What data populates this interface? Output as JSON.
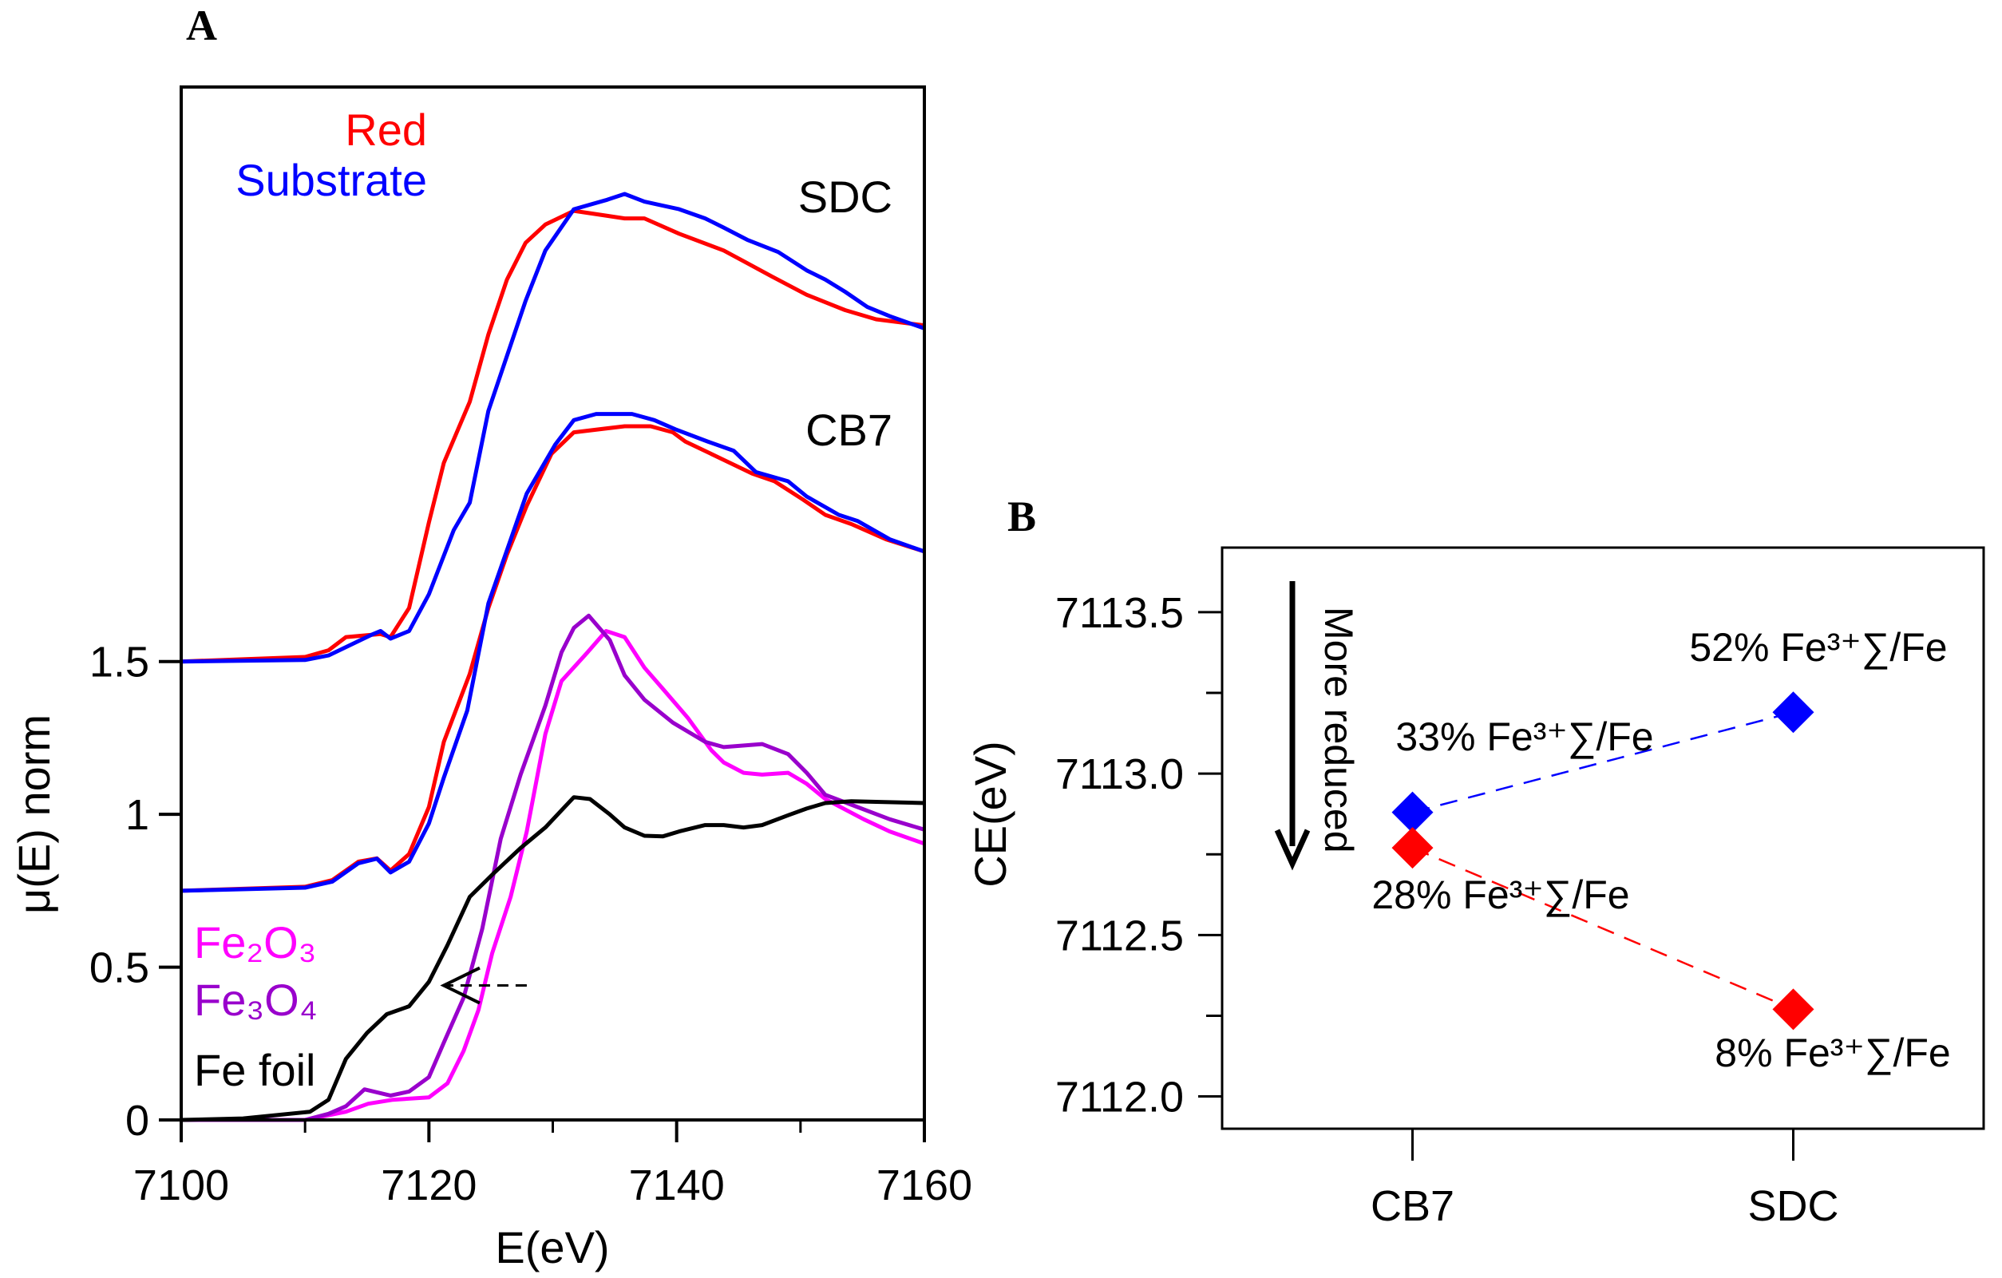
{
  "chart_data": [
    {
      "panel_label": "A",
      "type": "line",
      "xlabel": "E(eV)",
      "ylabel": "μ(E) norm",
      "xlim": [
        7100,
        7160
      ],
      "ylim": [
        0,
        3.38
      ],
      "xticks": [
        "7100",
        "7120",
        "7140",
        "7160"
      ],
      "yticks": [
        "0",
        "0.5",
        "1",
        "1.5"
      ],
      "grid": false,
      "legend": {
        "red_label": "Red",
        "substrate_label": "Substrate",
        "fe2o3_label": "Fe₂O₃",
        "fe3o4_label": "Fe₃O₄",
        "fefoil_label": "Fe foil"
      },
      "group_labels": {
        "sdc": "SDC",
        "cb7": "CB7"
      },
      "colors": {
        "red": "#ff0000",
        "substrate": "#0000ff",
        "fe2o3": "#ff00ff",
        "fe3o4": "#9900cc",
        "fefoil": "#000000"
      },
      "series": [
        {
          "name": "Red",
          "group": "SDC",
          "color": "#ff0000",
          "x": [
            7100,
            7110,
            7111.9,
            7113.3,
            7116.1,
            7116.9,
            7118.4,
            7120,
            7121.2,
            7123.3,
            7124.8,
            7126.3,
            7127.8,
            7129.4,
            7131.7,
            7135.8,
            7137.4,
            7140.2,
            7143.8,
            7145.4,
            7147.7,
            7150.5,
            7153.6,
            7156.1,
            7160
          ],
          "y": [
            1.5,
            1.515,
            1.537,
            1.58,
            1.59,
            1.58,
            1.675,
            1.955,
            2.15,
            2.35,
            2.57,
            2.75,
            2.87,
            2.93,
            2.975,
            2.95,
            2.95,
            2.9,
            2.845,
            2.81,
            2.76,
            2.7,
            2.65,
            2.62,
            2.6
          ]
        },
        {
          "name": "Substrate",
          "group": "SDC",
          "color": "#0000ff",
          "x": [
            7100,
            7110,
            7111.9,
            7115.5,
            7116.1,
            7116.9,
            7118.4,
            7120,
            7122,
            7123.3,
            7124.8,
            7127.8,
            7129.4,
            7131.7,
            7134.3,
            7135.8,
            7137.4,
            7140.2,
            7142.3,
            7143.8,
            7145.7,
            7148.2,
            7150.5,
            7152,
            7153.6,
            7155.4,
            7157.2,
            7160
          ],
          "y": [
            1.5,
            1.505,
            1.52,
            1.59,
            1.6,
            1.575,
            1.6,
            1.72,
            1.93,
            2.02,
            2.32,
            2.68,
            2.845,
            2.98,
            3.01,
            3.03,
            3.005,
            2.98,
            2.95,
            2.92,
            2.88,
            2.84,
            2.78,
            2.75,
            2.71,
            2.66,
            2.63,
            2.59
          ]
        },
        {
          "name": "Red",
          "group": "CB7",
          "color": "#ff0000",
          "x": [
            7100,
            7110,
            7112.2,
            7114.3,
            7115.8,
            7116.9,
            7118.4,
            7120,
            7121.2,
            7123.3,
            7124.8,
            7126.3,
            7127.9,
            7129.9,
            7131.7,
            7135.8,
            7137.9,
            7139.7,
            7140.7,
            7143.8,
            7146.1,
            7147.9,
            7150.2,
            7152,
            7154.1,
            7156.9,
            7160
          ],
          "y": [
            0.75,
            0.763,
            0.785,
            0.845,
            0.856,
            0.816,
            0.87,
            1.024,
            1.237,
            1.46,
            1.675,
            1.85,
            2.01,
            2.18,
            2.25,
            2.27,
            2.27,
            2.25,
            2.22,
            2.16,
            2.115,
            2.09,
            2.03,
            1.98,
            1.95,
            1.9,
            1.86
          ]
        },
        {
          "name": "Substrate",
          "group": "CB7",
          "color": "#0000ff",
          "x": [
            7100,
            7110,
            7112.2,
            7114.3,
            7115.8,
            7116.9,
            7118.4,
            7120,
            7121.2,
            7123.1,
            7124.8,
            7127.9,
            7130.2,
            7131.7,
            7133.5,
            7136.4,
            7138.2,
            7139.9,
            7142.5,
            7144.6,
            7146.4,
            7149,
            7150.5,
            7153.1,
            7154.6,
            7157.2,
            7160
          ],
          "y": [
            0.75,
            0.76,
            0.78,
            0.84,
            0.855,
            0.81,
            0.845,
            0.97,
            1.12,
            1.34,
            1.69,
            2.05,
            2.21,
            2.29,
            2.31,
            2.31,
            2.29,
            2.26,
            2.22,
            2.19,
            2.12,
            2.09,
            2.04,
            1.98,
            1.96,
            1.9,
            1.86
          ]
        },
        {
          "name": "Fe₂O₃",
          "color": "#ff00ff",
          "x": [
            7100,
            7110,
            7113.3,
            7115.1,
            7117.1,
            7120,
            7121.5,
            7122.8,
            7124.0,
            7125.1,
            7126.6,
            7127.9,
            7129.4,
            7130.7,
            7132.8,
            7134.3,
            7135.8,
            7137.4,
            7138.9,
            7140.9,
            7142.8,
            7143.8,
            7145.4,
            7146.9,
            7149,
            7150.5,
            7152,
            7155.1,
            7157.2,
            7160
          ],
          "y": [
            0,
            0,
            0.027,
            0.053,
            0.066,
            0.074,
            0.12,
            0.226,
            0.36,
            0.545,
            0.73,
            0.944,
            1.263,
            1.436,
            1.53,
            1.6,
            1.58,
            1.48,
            1.41,
            1.316,
            1.21,
            1.17,
            1.136,
            1.13,
            1.136,
            1.1,
            1.05,
            0.984,
            0.944,
            0.904
          ]
        },
        {
          "name": "Fe₃O₄",
          "color": "#9900cc",
          "x": [
            7100,
            7110,
            7111.9,
            7113.3,
            7114.8,
            7116.9,
            7118.4,
            7120,
            7121.2,
            7122.8,
            7124.3,
            7125.8,
            7127.4,
            7129.4,
            7130.7,
            7131.7,
            7132.9,
            7134.6,
            7135.8,
            7137.4,
            7139.7,
            7142.3,
            7143.8,
            7146.9,
            7149,
            7150.5,
            7152,
            7154.6,
            7157.2,
            7160
          ],
          "y": [
            0,
            0,
            0.02,
            0.045,
            0.1,
            0.08,
            0.093,
            0.14,
            0.253,
            0.4,
            0.625,
            0.92,
            1.13,
            1.356,
            1.53,
            1.61,
            1.65,
            1.57,
            1.455,
            1.375,
            1.3,
            1.237,
            1.22,
            1.23,
            1.197,
            1.136,
            1.064,
            1.024,
            0.984,
            0.95
          ]
        },
        {
          "name": "Fe foil",
          "color": "#000000",
          "x": [
            7100,
            7105,
            7110.4,
            7111.9,
            7113.3,
            7115,
            7116.6,
            7118.4,
            7120,
            7121.5,
            7123.3,
            7125.3,
            7127.4,
            7129.4,
            7131.7,
            7133,
            7134.6,
            7135.8,
            7137.4,
            7138.9,
            7140.2,
            7142.3,
            7143.8,
            7145.4,
            7146.9,
            7149,
            7150.5,
            7152,
            7154.1,
            7160
          ],
          "y": [
            0,
            0.005,
            0.027,
            0.066,
            0.2,
            0.285,
            0.346,
            0.372,
            0.452,
            0.572,
            0.73,
            0.81,
            0.89,
            0.957,
            1.056,
            1.05,
            1.0,
            0.957,
            0.93,
            0.928,
            0.944,
            0.965,
            0.965,
            0.957,
            0.965,
            0.997,
            1.019,
            1.037,
            1.043,
            1.037
          ]
        }
      ],
      "annotations": [
        {
          "type": "dashed-arrow",
          "from": [
            7127.9,
            0.44
          ],
          "to": [
            7121.2,
            0.44
          ]
        }
      ]
    },
    {
      "panel_label": "B",
      "type": "scatter",
      "xlabel": "",
      "ylabel": "CE(eV)",
      "categories": [
        "CB7",
        "SDC"
      ],
      "ylim": [
        7111.9,
        7113.7
      ],
      "yticks": [
        "7112.0",
        "7112.5",
        "7113.0",
        "7113.5"
      ],
      "grid": false,
      "marker": "diamond",
      "line_style": "dashed",
      "series": [
        {
          "color": "#0000ff",
          "values": [
            7112.88,
            7113.19
          ],
          "labels": [
            "33% Fe³⁺∑/Fe",
            "52% Fe³⁺∑/Fe"
          ]
        },
        {
          "color": "#ff0000",
          "values": [
            7112.77,
            7112.27
          ],
          "labels": [
            "28% Fe³⁺∑/Fe",
            "8% Fe³⁺∑/Fe"
          ]
        }
      ],
      "annotation": {
        "text": "More reduced",
        "type": "down-arrow"
      }
    }
  ]
}
